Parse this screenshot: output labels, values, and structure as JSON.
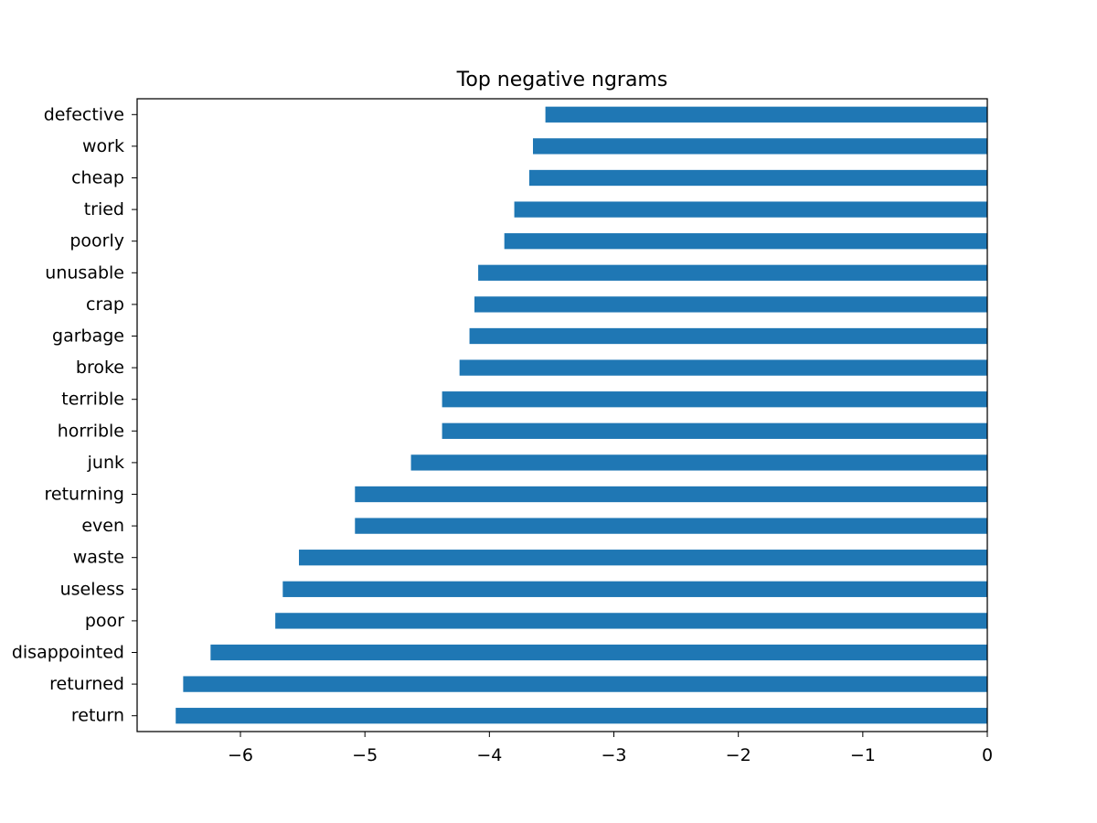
{
  "chart_data": {
    "type": "bar",
    "orientation": "horizontal",
    "title": "Top negative ngrams",
    "xlabel": "",
    "ylabel": "",
    "categories": [
      "defective",
      "work",
      "cheap",
      "tried",
      "poorly",
      "unusable",
      "crap",
      "garbage",
      "broke",
      "terrible",
      "horrible",
      "junk",
      "returning",
      "even",
      "waste",
      "useless",
      "poor",
      "disappointed",
      "returned",
      "return"
    ],
    "values": [
      -3.55,
      -3.65,
      -3.68,
      -3.8,
      -3.88,
      -4.09,
      -4.12,
      -4.16,
      -4.24,
      -4.38,
      -4.38,
      -4.63,
      -5.08,
      -5.08,
      -5.53,
      -5.66,
      -5.72,
      -6.24,
      -6.46,
      -6.52
    ],
    "xlim": [
      -6.83,
      0
    ],
    "xticks": [
      -6,
      -5,
      -4,
      -3,
      -2,
      -1,
      0
    ],
    "xtick_labels": [
      "−6",
      "−5",
      "−4",
      "−3",
      "−2",
      "−1",
      "0"
    ],
    "bar_color": "#1f77b4",
    "grid": false,
    "legend": "none"
  }
}
